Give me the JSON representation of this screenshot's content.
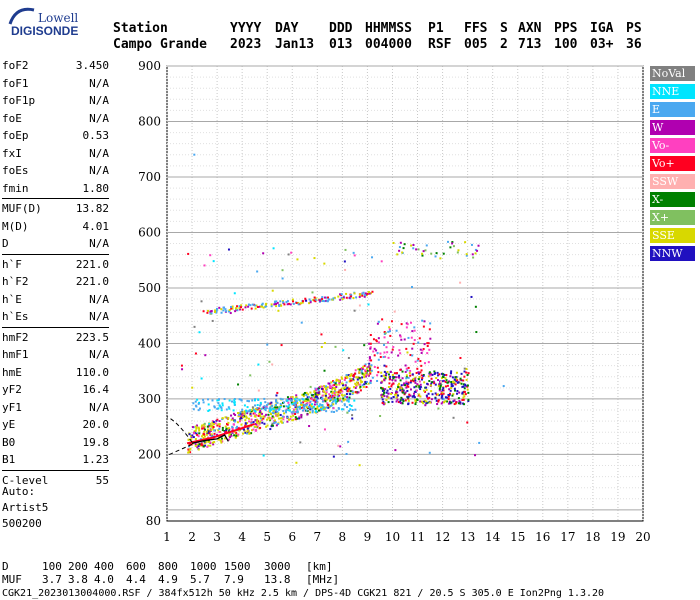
{
  "logo": {
    "top": "Lowell",
    "bottom": "DIGISONDE"
  },
  "header": {
    "labels": [
      "Station",
      "YYYY",
      "DAY",
      "DDD",
      "HHMMSS",
      "P1",
      "FFS",
      "S",
      "AXN",
      "PPS",
      "IGA",
      "PS"
    ],
    "values": [
      "Campo Grande",
      "2023",
      "Jan13",
      "013",
      "004000",
      "RSF",
      "005",
      "2",
      "713",
      "100",
      "03+",
      "36"
    ]
  },
  "params": {
    "groups": [
      [
        [
          "foF2",
          "3.450"
        ],
        [
          "foF1",
          "N/A"
        ],
        [
          "foF1p",
          "N/A"
        ],
        [
          "foE",
          "N/A"
        ],
        [
          "foEp",
          "0.53"
        ],
        [
          "fxI",
          "N/A"
        ],
        [
          "foEs",
          "N/A"
        ],
        [
          "fmin",
          "1.80"
        ]
      ],
      [
        [
          "MUF(D)",
          "13.82"
        ],
        [
          "M(D)",
          "4.01"
        ],
        [
          "D",
          "N/A"
        ]
      ],
      [
        [
          "h`F",
          "221.0"
        ],
        [
          "h`F2",
          "221.0"
        ],
        [
          "h`E",
          "N/A"
        ],
        [
          "h`Es",
          "N/A"
        ]
      ],
      [
        [
          "hmF2",
          "223.5"
        ],
        [
          "hmF1",
          "N/A"
        ],
        [
          "hmE",
          "110.0"
        ],
        [
          "yF2",
          "16.4"
        ],
        [
          "yF1",
          "N/A"
        ],
        [
          "yE",
          "20.0"
        ],
        [
          "B0",
          "19.8"
        ],
        [
          "B1",
          "1.23"
        ]
      ],
      [
        [
          "C-level",
          "55"
        ]
      ]
    ]
  },
  "auto": {
    "line1": "Auto:",
    "line2": "Artist5",
    "line3": "500200"
  },
  "legend": [
    {
      "label": "NoVal",
      "color": "#808080"
    },
    {
      "label": "NNE",
      "color": "#00e5ff"
    },
    {
      "label": "E",
      "color": "#4aa8f0"
    },
    {
      "label": "W",
      "color": "#b000b0"
    },
    {
      "label": "Vo-",
      "color": "#ff40c0"
    },
    {
      "label": "Vo+",
      "color": "#ff0020"
    },
    {
      "label": "SSW",
      "color": "#ffb0b0"
    },
    {
      "label": "X-",
      "color": "#008000"
    },
    {
      "label": "X+",
      "color": "#80c060"
    },
    {
      "label": "SSE",
      "color": "#d8d800"
    },
    {
      "label": "NNW",
      "color": "#2010c0"
    }
  ],
  "footer": {
    "d_label": "D",
    "d_values": [
      "100",
      "200",
      "400",
      "600",
      "800",
      "1000",
      "1500",
      "3000",
      "[km]"
    ],
    "muf_label": "MUF",
    "muf_values": [
      "3.7",
      "3.8",
      "4.0",
      "4.4",
      "4.9",
      "5.7",
      "7.9",
      "13.8",
      "[MHz]"
    ],
    "info": "CGK21_2023013004000.RSF / 384fx512h 50 kHz 2.5 km / DPS-4D CGK21 821 / 20.5 S 305.0 E Ion2Png 1.3.20"
  },
  "chart_data": {
    "type": "scatter",
    "x": {
      "range": [
        1,
        20
      ],
      "ticks": [
        1,
        2,
        3,
        4,
        5,
        6,
        7,
        8,
        9,
        10,
        11,
        12,
        13,
        14,
        15,
        16,
        17,
        18,
        19,
        20
      ],
      "unit": "MHz"
    },
    "y": {
      "range": [
        80,
        900
      ],
      "ticks": [
        200,
        300,
        400,
        500,
        600,
        700,
        800,
        900
      ],
      "bottom_label": "80",
      "unit": "km"
    },
    "grid": true,
    "legend_placement": "right",
    "traces": [
      {
        "name": "F2 trace",
        "points": [
          [
            1.8,
            220
          ],
          [
            2.2,
            224
          ],
          [
            2.8,
            230
          ],
          [
            3.5,
            240
          ],
          [
            4.5,
            255
          ],
          [
            5.5,
            270
          ],
          [
            6.5,
            285
          ],
          [
            7.5,
            300
          ],
          [
            8.5,
            320
          ],
          [
            9.0,
            335
          ]
        ]
      },
      {
        "name": "upper trace",
        "points": [
          [
            2.5,
            460
          ],
          [
            4,
            470
          ],
          [
            5,
            478
          ],
          [
            6,
            482
          ],
          [
            7,
            487
          ],
          [
            8,
            490
          ],
          [
            9,
            495
          ]
        ]
      },
      {
        "name": "high-frequency echoes",
        "points": [
          [
            10,
            335
          ],
          [
            10.5,
            330
          ],
          [
            11,
            320
          ],
          [
            11.5,
            315
          ],
          [
            12.2,
            330
          ],
          [
            12.8,
            320
          ]
        ]
      },
      {
        "name": "oblique echoes",
        "points": [
          [
            10.2,
            560
          ],
          [
            11,
            565
          ],
          [
            12.3,
            560
          ],
          [
            12.8,
            565
          ],
          [
            13.3,
            585
          ]
        ]
      }
    ],
    "profile": [
      [
        3.45,
        223.5
      ],
      [
        3.3,
        235
      ],
      [
        3.0,
        228
      ],
      [
        2.5,
        225
      ],
      [
        2.0,
        220
      ],
      [
        1.5,
        210
      ],
      [
        1.0,
        200
      ]
    ]
  }
}
